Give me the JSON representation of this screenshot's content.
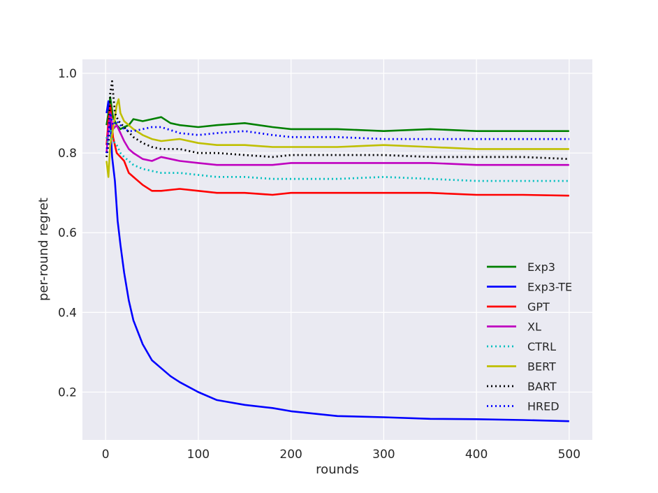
{
  "chart_data": {
    "type": "line",
    "title": "",
    "xlabel": "rounds",
    "ylabel": "per-round regret",
    "xlim": [
      -25,
      525
    ],
    "ylim": [
      0.08,
      1.035
    ],
    "xticks": [
      0,
      100,
      200,
      300,
      400,
      500
    ],
    "yticks": [
      0.2,
      0.4,
      0.6,
      0.8,
      1.0
    ],
    "xtick_labels": [
      "0",
      "100",
      "200",
      "300",
      "400",
      "500"
    ],
    "ytick_labels": [
      "0.2",
      "0.4",
      "0.6",
      "0.8",
      "1.0"
    ],
    "grid": true,
    "legend_position": "center-right",
    "background": "#eaeaf2",
    "series": [
      {
        "name": "Exp3",
        "color": "#008000",
        "style": "solid",
        "x": [
          1,
          3,
          5,
          8,
          12,
          16,
          20,
          25,
          30,
          40,
          50,
          60,
          70,
          80,
          100,
          120,
          150,
          180,
          200,
          250,
          300,
          350,
          400,
          450,
          500
        ],
        "y": [
          0.87,
          0.9,
          0.94,
          0.89,
          0.87,
          0.86,
          0.865,
          0.87,
          0.885,
          0.88,
          0.885,
          0.89,
          0.875,
          0.87,
          0.865,
          0.87,
          0.875,
          0.865,
          0.86,
          0.86,
          0.855,
          0.86,
          0.855,
          0.855,
          0.855
        ]
      },
      {
        "name": "Exp3-TE",
        "color": "#0000ff",
        "style": "solid",
        "x": [
          1,
          3,
          5,
          7,
          10,
          13,
          16,
          20,
          25,
          30,
          35,
          40,
          50,
          60,
          70,
          80,
          100,
          120,
          150,
          180,
          200,
          250,
          300,
          350,
          400,
          450,
          500
        ],
        "y": [
          0.9,
          0.93,
          0.88,
          0.79,
          0.73,
          0.63,
          0.57,
          0.5,
          0.43,
          0.38,
          0.35,
          0.32,
          0.28,
          0.26,
          0.24,
          0.225,
          0.2,
          0.18,
          0.168,
          0.16,
          0.152,
          0.14,
          0.137,
          0.133,
          0.132,
          0.13,
          0.127
        ]
      },
      {
        "name": "GPT",
        "color": "#ff0000",
        "style": "solid",
        "x": [
          1,
          3,
          5,
          8,
          12,
          16,
          20,
          25,
          30,
          40,
          50,
          60,
          80,
          100,
          120,
          150,
          180,
          200,
          250,
          300,
          350,
          400,
          450,
          500
        ],
        "y": [
          0.82,
          0.88,
          0.92,
          0.84,
          0.8,
          0.79,
          0.78,
          0.75,
          0.74,
          0.72,
          0.705,
          0.705,
          0.71,
          0.705,
          0.7,
          0.7,
          0.695,
          0.7,
          0.7,
          0.7,
          0.7,
          0.695,
          0.695,
          0.693
        ]
      },
      {
        "name": "XL",
        "color": "#bf00bf",
        "style": "solid",
        "x": [
          1,
          3,
          5,
          8,
          12,
          16,
          20,
          25,
          30,
          40,
          50,
          60,
          80,
          100,
          120,
          150,
          180,
          200,
          250,
          300,
          350,
          400,
          450,
          500
        ],
        "y": [
          0.8,
          0.86,
          0.9,
          0.86,
          0.87,
          0.85,
          0.83,
          0.81,
          0.8,
          0.785,
          0.78,
          0.79,
          0.78,
          0.775,
          0.77,
          0.77,
          0.77,
          0.775,
          0.775,
          0.775,
          0.775,
          0.77,
          0.77,
          0.77
        ]
      },
      {
        "name": "CTRL",
        "color": "#00bfbf",
        "style": "dotted",
        "x": [
          1,
          3,
          5,
          8,
          12,
          16,
          20,
          25,
          30,
          40,
          50,
          60,
          80,
          100,
          120,
          150,
          180,
          200,
          250,
          300,
          350,
          400,
          450,
          500
        ],
        "y": [
          0.84,
          0.82,
          0.86,
          0.83,
          0.82,
          0.8,
          0.79,
          0.78,
          0.77,
          0.76,
          0.755,
          0.75,
          0.75,
          0.745,
          0.74,
          0.74,
          0.735,
          0.735,
          0.735,
          0.74,
          0.735,
          0.73,
          0.73,
          0.73
        ]
      },
      {
        "name": "BERT",
        "color": "#bfbf00",
        "style": "solid",
        "x": [
          1,
          3,
          5,
          8,
          12,
          14,
          16,
          20,
          25,
          30,
          40,
          50,
          60,
          80,
          100,
          120,
          150,
          180,
          200,
          250,
          300,
          350,
          400,
          450,
          500
        ],
        "y": [
          0.78,
          0.74,
          0.82,
          0.86,
          0.92,
          0.935,
          0.9,
          0.88,
          0.87,
          0.86,
          0.845,
          0.835,
          0.83,
          0.835,
          0.825,
          0.82,
          0.82,
          0.815,
          0.815,
          0.815,
          0.82,
          0.815,
          0.81,
          0.81,
          0.81
        ]
      },
      {
        "name": "BART",
        "color": "#000000",
        "style": "dotted",
        "x": [
          1,
          3,
          5,
          7,
          10,
          14,
          18,
          22,
          26,
          30,
          40,
          50,
          60,
          80,
          100,
          120,
          150,
          180,
          200,
          250,
          300,
          350,
          400,
          450,
          500
        ],
        "y": [
          0.79,
          0.82,
          0.95,
          0.98,
          0.9,
          0.88,
          0.87,
          0.86,
          0.85,
          0.84,
          0.825,
          0.815,
          0.81,
          0.81,
          0.8,
          0.8,
          0.795,
          0.79,
          0.795,
          0.795,
          0.795,
          0.79,
          0.79,
          0.79,
          0.785
        ]
      },
      {
        "name": "HRED",
        "color": "#0000ff",
        "style": "dotted",
        "x": [
          1,
          3,
          5,
          8,
          12,
          16,
          20,
          25,
          30,
          40,
          50,
          60,
          80,
          100,
          120,
          150,
          180,
          200,
          250,
          300,
          350,
          400,
          450,
          500
        ],
        "y": [
          0.8,
          0.85,
          0.9,
          0.87,
          0.88,
          0.87,
          0.86,
          0.855,
          0.855,
          0.86,
          0.865,
          0.865,
          0.85,
          0.845,
          0.85,
          0.855,
          0.845,
          0.84,
          0.84,
          0.835,
          0.835,
          0.835,
          0.835,
          0.835
        ]
      }
    ]
  }
}
